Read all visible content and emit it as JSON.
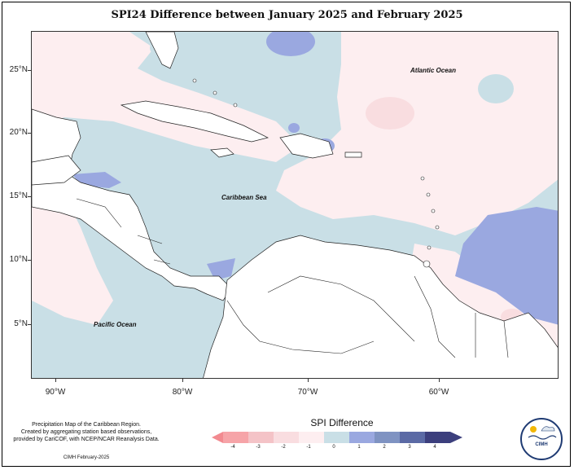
{
  "title": "SPI24 Difference between January 2025 and February 2025",
  "axes": {
    "lat_labels": [
      "25°N",
      "20°N",
      "15°N",
      "10°N",
      "5°N"
    ],
    "lon_labels": [
      "90°W",
      "80°W",
      "70°W",
      "60°W"
    ]
  },
  "places": {
    "atlantic": "Atlantic Ocean",
    "caribbean": "Caribbean Sea",
    "pacific": "Pacific Ocean"
  },
  "legend": {
    "title": "SPI Difference",
    "ticks": [
      "-4",
      "-3",
      "-2",
      "-1",
      "0",
      "1",
      "2",
      "3",
      "4"
    ],
    "colors": [
      "#f6a4a8",
      "#f4c3c7",
      "#f9dde0",
      "#fdeef0",
      "#c9dfe6",
      "#9aa8e0",
      "#7f93c2",
      "#5b6aa5",
      "#3c3f7d"
    ]
  },
  "note": {
    "line1": "Precipitation Map of the Caribbean Region.",
    "line2": "Created by aggregating station based observations,",
    "line3": "provided by CariCOF, with NCEP/NCAR Reanalysis Data."
  },
  "credit": "CIMH February-2025",
  "logo": {
    "text": "CIMH"
  }
}
